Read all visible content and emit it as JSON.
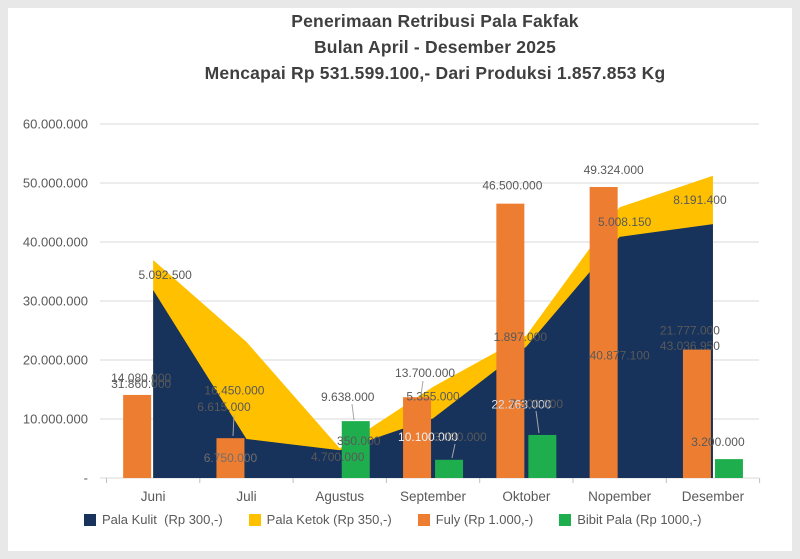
{
  "header": {
    "title_line1": "Penerimaan Retribusi Pala Fakfak",
    "title_line2": "Bulan April - Desember 2025",
    "title_line3": "Mencapai Rp 531.599.100,- Dari Produksi  1.857.853 Kg"
  },
  "chart_data": {
    "type": "combo: stacked-area + bar",
    "categories": [
      "Juni",
      "Juli",
      "Agustus",
      "September",
      "Oktober",
      "Nopember",
      "Desember"
    ],
    "series": [
      {
        "name": "Pala Kulit  (Rp 300,-)",
        "render": "stacked-area",
        "color": "#17325b",
        "values": [
          31860000,
          6615000,
          4700000,
          10100000,
          22263000,
          40877100,
          43036950
        ]
      },
      {
        "name": "Pala Ketok (Rp 350,-)",
        "render": "stacked-area",
        "color": "#ffc000",
        "values": [
          5092500,
          16450000,
          350000,
          5355000,
          1897000,
          5008150,
          8191400
        ]
      },
      {
        "name": "Fuly (Rp 1.000,-)",
        "render": "bar",
        "color": "#ed7d31",
        "values": [
          14080000,
          6750000,
          0,
          13700000,
          46500000,
          49324000,
          21777000
        ]
      },
      {
        "name": "Bibit Pala (Rp 1000,-)",
        "render": "bar",
        "color": "#1fae4e",
        "values": [
          0,
          0,
          9638000,
          3090000,
          7300000,
          0,
          3200000
        ]
      }
    ],
    "y_axis": {
      "min": 0,
      "max": 60000000,
      "step": 10000000,
      "tick_labels": [
        "-",
        "10.000.000",
        "20.000.000",
        "30.000.000",
        "40.000.000",
        "50.000.000",
        "60.000.000"
      ]
    },
    "grid": true,
    "data_labels": true,
    "legend_position": "bottom"
  },
  "legend": {
    "items": [
      {
        "label": "Pala Kulit  (Rp 300,-)",
        "color": "#17325b"
      },
      {
        "label": "Pala Ketok (Rp 350,-)",
        "color": "#ffc000"
      },
      {
        "label": "Fuly (Rp 1.000,-)",
        "color": "#ed7d31"
      },
      {
        "label": "Bibit Pala (Rp 1000,-)",
        "color": "#1fae4e"
      }
    ]
  },
  "colors": {
    "gridline": "#d9d9d9",
    "axis_tick": "#bfbfbf",
    "label_text": "#595959",
    "title_text": "#3f3f3f",
    "frame": "#e8e8e8",
    "plot_background": "#ffffff"
  }
}
